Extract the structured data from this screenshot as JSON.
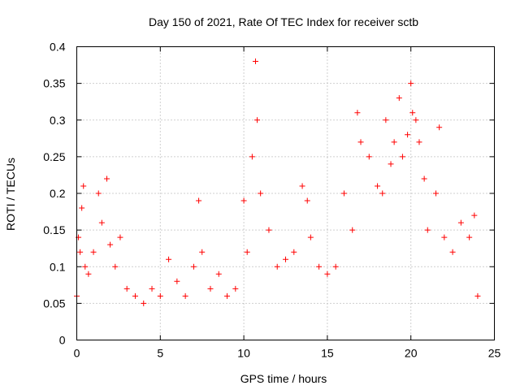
{
  "chart_data": {
    "type": "scatter",
    "title": "Day 150 of 2021, Rate Of TEC Index for receiver sctb",
    "xlabel": "GPS time / hours",
    "ylabel": "ROTI / TECUs",
    "xlim": [
      0,
      25
    ],
    "ylim": [
      0,
      0.4
    ],
    "xticks": [
      0,
      5,
      10,
      15,
      20,
      25
    ],
    "xtick_labels": [
      "0",
      "5",
      "10",
      "15",
      "20",
      "25"
    ],
    "yticks": [
      0,
      0.05,
      0.1,
      0.15,
      0.2,
      0.25,
      0.3,
      0.35,
      0.4
    ],
    "ytick_labels": [
      "0",
      "0.05",
      "0.1",
      "0.15",
      "0.2",
      "0.25",
      "0.3",
      "0.35",
      "0.4"
    ],
    "grid": true,
    "marker": "+",
    "color": "#ff0000",
    "series": [
      {
        "name": "ROTI",
        "x": [
          0.0,
          0.1,
          0.2,
          0.3,
          0.4,
          0.5,
          0.7,
          1.0,
          1.3,
          1.5,
          1.8,
          2.0,
          2.3,
          2.6,
          3.0,
          3.5,
          4.0,
          4.5,
          5.0,
          5.5,
          6.0,
          6.5,
          7.0,
          7.3,
          7.5,
          8.0,
          8.5,
          9.0,
          9.5,
          10.0,
          10.2,
          10.5,
          10.7,
          10.8,
          11.0,
          11.5,
          12.0,
          12.5,
          13.0,
          13.5,
          13.8,
          14.0,
          14.5,
          15.0,
          15.5,
          16.0,
          16.5,
          16.8,
          17.0,
          17.5,
          18.0,
          18.3,
          18.5,
          18.8,
          19.0,
          19.3,
          19.5,
          19.8,
          20.0,
          20.1,
          20.3,
          20.5,
          20.8,
          21.0,
          21.5,
          21.7,
          22.0,
          22.5,
          23.0,
          23.5,
          23.8,
          24.0
        ],
        "y": [
          0.06,
          0.14,
          0.12,
          0.18,
          0.21,
          0.1,
          0.09,
          0.12,
          0.2,
          0.16,
          0.22,
          0.13,
          0.1,
          0.14,
          0.07,
          0.06,
          0.05,
          0.07,
          0.06,
          0.11,
          0.08,
          0.06,
          0.1,
          0.19,
          0.12,
          0.07,
          0.09,
          0.06,
          0.07,
          0.19,
          0.12,
          0.25,
          0.38,
          0.3,
          0.2,
          0.15,
          0.1,
          0.11,
          0.12,
          0.21,
          0.19,
          0.14,
          0.1,
          0.09,
          0.1,
          0.2,
          0.15,
          0.31,
          0.27,
          0.25,
          0.21,
          0.2,
          0.3,
          0.24,
          0.27,
          0.33,
          0.25,
          0.28,
          0.35,
          0.31,
          0.3,
          0.27,
          0.22,
          0.15,
          0.2,
          0.29,
          0.14,
          0.12,
          0.16,
          0.14,
          0.17,
          0.06
        ]
      }
    ]
  }
}
